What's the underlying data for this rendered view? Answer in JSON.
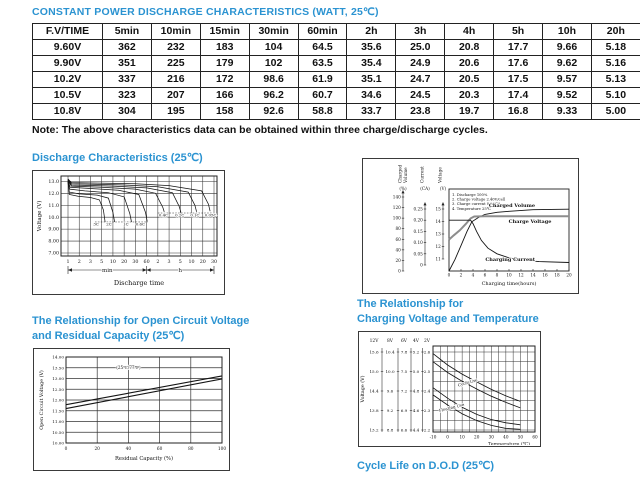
{
  "title": "CONSTANT POWER DISCHARGE CHARACTERISTICS (WATT, 25℃)",
  "table": {
    "columns": [
      "F.V/TIME",
      "5min",
      "10min",
      "15min",
      "30min",
      "60min",
      "2h",
      "3h",
      "4h",
      "5h",
      "10h",
      "20h"
    ],
    "rows": [
      [
        "9.60V",
        "362",
        "232",
        "183",
        "104",
        "64.5",
        "35.6",
        "25.0",
        "20.8",
        "17.7",
        "9.66",
        "5.18"
      ],
      [
        "9.90V",
        "351",
        "225",
        "179",
        "102",
        "63.5",
        "35.4",
        "24.9",
        "20.6",
        "17.6",
        "9.62",
        "5.16"
      ],
      [
        "10.2V",
        "337",
        "216",
        "172",
        "98.6",
        "61.9",
        "35.1",
        "24.7",
        "20.5",
        "17.5",
        "9.57",
        "5.13"
      ],
      [
        "10.5V",
        "323",
        "207",
        "166",
        "96.2",
        "60.7",
        "34.6",
        "24.5",
        "20.3",
        "17.4",
        "9.52",
        "5.10"
      ],
      [
        "10.8V",
        "304",
        "195",
        "158",
        "92.6",
        "58.8",
        "33.7",
        "23.8",
        "19.7",
        "16.8",
        "9.33",
        "5.00"
      ]
    ]
  },
  "note": "Note: The above characteristics data can be obtained within three charge/discharge cycles.",
  "headings": {
    "discharge": "Discharge Characteristics (25℃)",
    "ocv_line1": "The Relationship for Open Circuit Voltage",
    "ocv_line2": "and Residual Capacity (25℃)",
    "charging_line1": "The Relationship for",
    "charging_line2": "Charging Voltage and Temperature",
    "cycle_life": "Cycle Life on D.O.D (25℃)"
  },
  "colors": {
    "heading_blue": "#2b93d1",
    "line_dark": "#141414",
    "charge_voltage_gray": "#8d8d8d"
  },
  "chart_data": [
    {
      "id": "discharge",
      "type": "line",
      "title": "Discharge Characteristics (25℃)",
      "ylabel": "Voltage (V)",
      "xlabel": "Discharge time",
      "yticks": [
        "13.0",
        "12.0",
        "11.0",
        "10.0",
        "9.00",
        "8.00",
        "7.00"
      ],
      "ylim": [
        7.0,
        13.45
      ],
      "x_sections": [
        {
          "label": "min",
          "ticks": [
            "1",
            "2",
            "3",
            "5",
            "10",
            "20",
            "30",
            "60"
          ]
        },
        {
          "label": "h",
          "ticks": [
            "2",
            "3",
            "5",
            "10",
            "20",
            "30"
          ]
        }
      ],
      "grid": true,
      "series": [
        {
          "name": "3C",
          "points": [
            [
              0,
              12.95
            ],
            [
              0.12,
              11.9
            ],
            [
              0.9,
              11.75
            ],
            [
              2.0,
              11.65
            ],
            [
              2.8,
              11.45
            ],
            [
              3.15,
              10.6
            ],
            [
              3.3,
              9.6
            ]
          ],
          "label_at": [
            2.5,
            9.3
          ]
        },
        {
          "name": "2C",
          "points": [
            [
              0,
              13.0
            ],
            [
              0.12,
              12.1
            ],
            [
              1.0,
              11.95
            ],
            [
              2.6,
              11.85
            ],
            [
              3.6,
              11.6
            ],
            [
              4.0,
              10.4
            ],
            [
              4.15,
              9.6
            ]
          ],
          "label_at": [
            3.65,
            9.3
          ]
        },
        {
          "name": "1C",
          "points": [
            [
              0,
              13.05
            ],
            [
              0.15,
              12.35
            ],
            [
              1.5,
              12.2
            ],
            [
              3.6,
              12.05
            ],
            [
              5.0,
              11.7
            ],
            [
              5.5,
              10.3
            ],
            [
              5.65,
              9.6
            ]
          ],
          "label_at": [
            5.15,
            9.3
          ]
        },
        {
          "name": "0.6C",
          "points": [
            [
              0,
              13.1
            ],
            [
              0.2,
              12.5
            ],
            [
              2.0,
              12.4
            ],
            [
              4.5,
              12.25
            ],
            [
              6.3,
              11.9
            ],
            [
              6.9,
              10.4
            ],
            [
              7.05,
              9.65
            ]
          ],
          "label_at": [
            6.45,
            9.3
          ]
        },
        {
          "name": "0.4C",
          "points": [
            [
              0,
              13.1
            ],
            [
              0.3,
              12.6
            ],
            [
              3.0,
              12.5
            ],
            [
              6.0,
              12.35
            ],
            [
              7.8,
              12.0
            ],
            [
              8.45,
              10.8
            ],
            [
              8.6,
              10.35
            ]
          ],
          "label_at": [
            8.5,
            10.05
          ]
        },
        {
          "name": "0.2C",
          "points": [
            [
              0,
              13.15
            ],
            [
              0.3,
              12.7
            ],
            [
              4.0,
              12.6
            ],
            [
              7.0,
              12.45
            ],
            [
              9.3,
              12.05
            ],
            [
              9.9,
              10.9
            ],
            [
              10.05,
              10.4
            ]
          ],
          "label_at": [
            9.95,
            10.05
          ]
        },
        {
          "name": "0.1C",
          "points": [
            [
              0,
              13.2
            ],
            [
              0.3,
              12.8
            ],
            [
              5.0,
              12.7
            ],
            [
              8.0,
              12.55
            ],
            [
              10.7,
              12.1
            ],
            [
              11.3,
              11.0
            ],
            [
              11.45,
              10.45
            ]
          ],
          "label_at": [
            11.3,
            10.05
          ]
        },
        {
          "name": "0.05C",
          "points": [
            [
              0,
              13.2
            ],
            [
              0.3,
              12.9
            ],
            [
              6.0,
              12.8
            ],
            [
              9.0,
              12.65
            ],
            [
              11.9,
              12.2
            ],
            [
              12.5,
              11.1
            ],
            [
              12.65,
              10.5
            ]
          ],
          "label_at": [
            12.7,
            10.05
          ]
        }
      ],
      "cutoff_lines": [
        {
          "y": 9.6,
          "from": 2.4,
          "to": 7.1
        },
        {
          "y": 10.35,
          "from": 8.0,
          "to": 12.9
        }
      ]
    },
    {
      "id": "charging",
      "type": "line",
      "xlabel": "Charging time(hours)",
      "xticks": [
        0,
        2,
        4,
        6,
        8,
        10,
        12,
        14,
        16,
        18,
        20
      ],
      "axes": [
        {
          "label1": "Charged",
          "label2": "Volume",
          "unit": "(%)",
          "ticks": [
            0,
            20,
            40,
            60,
            80,
            100,
            120,
            140
          ]
        },
        {
          "label1": "Current",
          "label2": "",
          "unit": "(CA)",
          "ticks": [
            0,
            0.05,
            0.1,
            0.15,
            0.2,
            0.25
          ]
        },
        {
          "label1": "Voltage",
          "label2": "",
          "unit": "(V)",
          "ticks": [
            11.0,
            12.0,
            13.0,
            14.0,
            15.0
          ]
        }
      ],
      "notes": [
        "1. Discharge 100%",
        "2. Charge voltage 2.40V/cell",
        "3. Charge current 0.25CA",
        "4. Temperature 25℃"
      ],
      "series": [
        {
          "name": "Charged Volume",
          "axis": "pct",
          "points": [
            [
              0,
              0
            ],
            [
              1,
              22
            ],
            [
              2,
              48
            ],
            [
              3,
              75
            ],
            [
              3.8,
              93
            ],
            [
              5,
              102
            ],
            [
              6,
              107
            ],
            [
              8,
              111
            ],
            [
              10,
              113
            ],
            [
              14,
              116
            ],
            [
              20,
              117
            ]
          ],
          "label_at": [
            10.5,
            48
          ]
        },
        {
          "name": "Charge Voltage",
          "axis": "volt",
          "points": [
            [
              0,
              12.55
            ],
            [
              0.8,
              12.9
            ],
            [
              1.8,
              13.3
            ],
            [
              2.8,
              13.8
            ],
            [
              3.6,
              14.25
            ],
            [
              4.2,
              14.4
            ],
            [
              6,
              14.42
            ],
            [
              20,
              14.42
            ]
          ],
          "label_at": [
            13.5,
            64
          ]
        },
        {
          "name": "Charging Current",
          "axis": "ca",
          "points": [
            [
              0,
              0.2
            ],
            [
              3.6,
              0.2
            ],
            [
              4.0,
              0.185
            ],
            [
              4.6,
              0.15
            ],
            [
              5.4,
              0.11
            ],
            [
              6.5,
              0.075
            ],
            [
              8,
              0.05
            ],
            [
              10,
              0.032
            ],
            [
              12,
              0.022
            ],
            [
              15,
              0.015
            ],
            [
              20,
              0.011
            ]
          ],
          "label_at": [
            10.2,
            102
          ]
        }
      ]
    },
    {
      "id": "ocv",
      "type": "line",
      "ylabel": "Open Circuit Voltage (V)",
      "xlabel": "Residual Capacity (%)",
      "yticks": [
        "14.00",
        "13.50",
        "13.00",
        "12.50",
        "12.00",
        "11.50",
        "11.00",
        "10.50",
        "10.00"
      ],
      "ylim": [
        10.0,
        14.0
      ],
      "xticks": [
        0,
        20,
        40,
        60,
        80,
        100
      ],
      "annotation": "(25℃/77℉)",
      "annotation_at": [
        40,
        13.45
      ],
      "grid": true,
      "series": [
        {
          "name": "upper",
          "points": [
            [
              0,
              11.78
            ],
            [
              100,
              13.12
            ]
          ]
        },
        {
          "name": "lower",
          "points": [
            [
              0,
              11.6
            ],
            [
              100,
              12.98
            ]
          ]
        }
      ]
    },
    {
      "id": "temp",
      "type": "line",
      "ylabel": "Voltage (V)",
      "xlabel": "Temperature (℃)",
      "axis_columns": [
        {
          "header": "12V",
          "ticks": [
            "15.6",
            "15.0",
            "14.4",
            "13.8",
            "13.2"
          ]
        },
        {
          "header": "8V",
          "ticks": [
            "10.4",
            "10.0",
            "9.6",
            "9.2",
            "8.8"
          ]
        },
        {
          "header": "6V",
          "ticks": [
            "7.8",
            "7.5",
            "7.2",
            "6.9",
            "6.6"
          ]
        },
        {
          "header": "4V",
          "ticks": [
            "5.2",
            "5.0",
            "4.8",
            "4.6",
            "4.4"
          ]
        },
        {
          "header": "2V",
          "ticks": [
            "2.6",
            "2.5",
            "2.4",
            "2.3",
            "2.2"
          ]
        }
      ],
      "xticks": [
        -10,
        0,
        10,
        20,
        30,
        40,
        50,
        60
      ],
      "ylim_12v": [
        13.2,
        15.6
      ],
      "bands": [
        {
          "name": "Cycle Use",
          "upper": [
            [
              -10,
              15.55
            ],
            [
              0,
              15.2
            ],
            [
              10,
              14.92
            ],
            [
              20,
              14.68
            ],
            [
              30,
              14.45
            ],
            [
              40,
              14.25
            ],
            [
              50,
              14.08
            ]
          ],
          "lower": [
            [
              -10,
              15.3
            ],
            [
              0,
              14.97
            ],
            [
              10,
              14.7
            ],
            [
              20,
              14.46
            ],
            [
              30,
              14.24
            ],
            [
              40,
              14.05
            ],
            [
              50,
              13.88
            ]
          ],
          "label_at": [
            14,
            14.62
          ],
          "label_angle": -16
        },
        {
          "name": "Floating Use",
          "upper": [
            [
              -10,
              14.5
            ],
            [
              0,
              14.18
            ],
            [
              10,
              13.9
            ],
            [
              20,
              13.68
            ],
            [
              30,
              13.52
            ],
            [
              40,
              13.42
            ],
            [
              50,
              13.36
            ]
          ],
          "lower": [
            [
              -10,
              14.28
            ],
            [
              0,
              13.97
            ],
            [
              10,
              13.7
            ],
            [
              20,
              13.49
            ],
            [
              30,
              13.34
            ],
            [
              40,
              13.25
            ],
            [
              50,
              13.22
            ]
          ],
          "label_at": [
            3,
            13.85
          ],
          "label_angle": -14
        }
      ]
    }
  ]
}
